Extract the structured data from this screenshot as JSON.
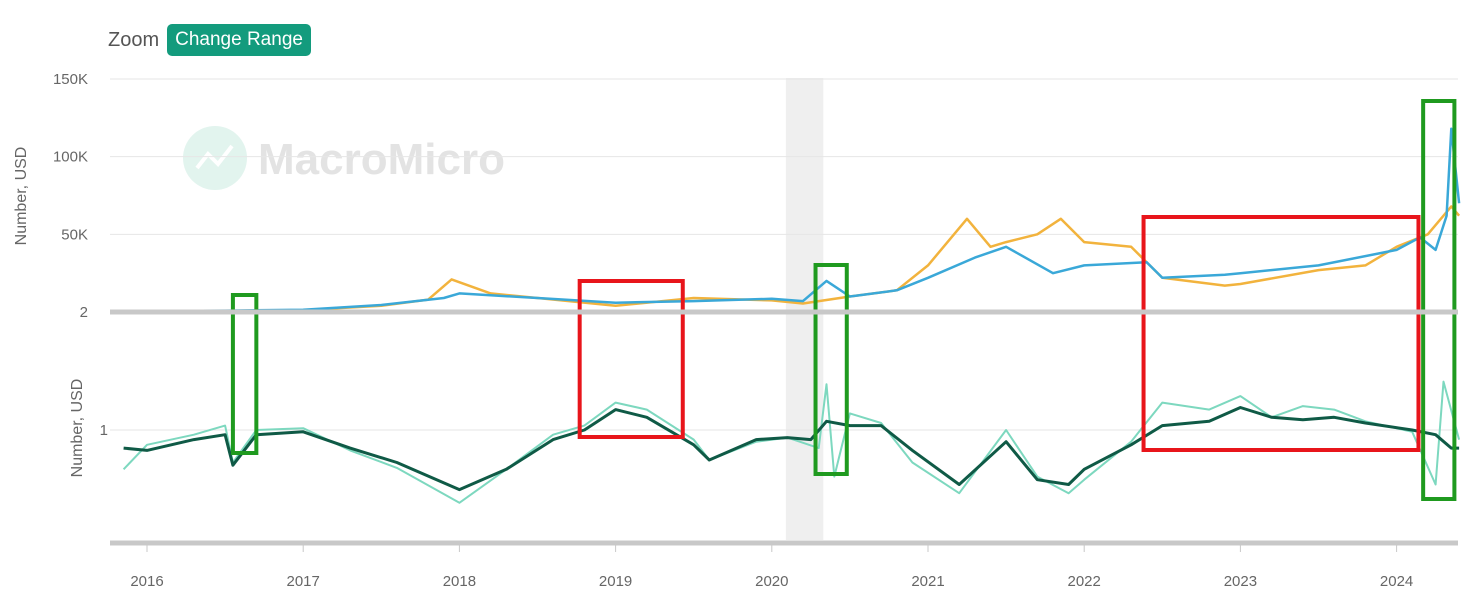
{
  "toolbar": {
    "zoom_label": "Zoom",
    "range_button": "Change Range"
  },
  "watermark": "MacroMicro",
  "colors": {
    "upper_blue": "#3aa8d8",
    "upper_orange": "#f2b33d",
    "lower_light": "#7dd8bf",
    "lower_dark": "#0f5a46",
    "box_red": "#e8151b",
    "box_green": "#1f9a1f",
    "shade": "#efefef"
  },
  "chart_data": [
    {
      "type": "line",
      "panel": "upper",
      "ylabel": "Number, USD",
      "y_ticks": [
        "150K",
        "100K",
        "50K",
        "2"
      ],
      "ylim": [
        0,
        150000
      ],
      "series": [
        {
          "color": "blue",
          "x": [
            2015.9,
            2016.5,
            2017.0,
            2017.5,
            2017.9,
            2018.0,
            2018.5,
            2019.0,
            2019.5,
            2020.0,
            2020.2,
            2020.35,
            2020.5,
            2020.8,
            2021.0,
            2021.3,
            2021.5,
            2021.8,
            2022.0,
            2022.4,
            2022.5,
            2022.9,
            2023.0,
            2023.5,
            2023.9,
            2024.0,
            2024.15,
            2024.25,
            2024.32,
            2024.35,
            2024.4
          ],
          "y": [
            600,
            900,
            1500,
            4500,
            9000,
            12000,
            9000,
            6000,
            7000,
            8500,
            7000,
            20000,
            10000,
            14000,
            22000,
            35000,
            42000,
            25000,
            30000,
            32000,
            22000,
            24000,
            25000,
            30000,
            38000,
            40000,
            48000,
            40000,
            62000,
            118000,
            70000
          ]
        },
        {
          "color": "orange",
          "x": [
            2015.9,
            2016.5,
            2017.0,
            2017.5,
            2017.8,
            2017.95,
            2018.2,
            2018.5,
            2019.0,
            2019.5,
            2020.0,
            2020.2,
            2020.5,
            2020.8,
            2021.0,
            2021.25,
            2021.4,
            2021.5,
            2021.7,
            2021.85,
            2022.0,
            2022.3,
            2022.5,
            2022.9,
            2023.0,
            2023.5,
            2023.8,
            2024.0,
            2024.2,
            2024.35,
            2024.4
          ],
          "y": [
            500,
            700,
            1200,
            4000,
            8000,
            21000,
            12000,
            9000,
            4000,
            9000,
            7500,
            5500,
            10000,
            14000,
            30000,
            60000,
            42000,
            45000,
            50000,
            60000,
            45000,
            42000,
            22000,
            17000,
            18000,
            27000,
            30000,
            42000,
            50000,
            68000,
            62000
          ]
        }
      ]
    },
    {
      "type": "line",
      "panel": "lower",
      "ylabel": "Number, USD",
      "y_ticks": [
        "1"
      ],
      "series": [
        {
          "color": "light",
          "x": [
            2015.85,
            2016.0,
            2016.3,
            2016.5,
            2016.55,
            2016.7,
            2017.0,
            2017.3,
            2017.6,
            2018.0,
            2018.3,
            2018.6,
            2018.8,
            2019.0,
            2019.2,
            2019.5,
            2019.6,
            2019.9,
            2020.1,
            2020.3,
            2020.35,
            2020.4,
            2020.5,
            2020.7,
            2020.9,
            2021.2,
            2021.5,
            2021.7,
            2021.9,
            2022.0,
            2022.3,
            2022.5,
            2022.8,
            2023.0,
            2023.2,
            2023.4,
            2023.6,
            2023.8,
            2024.1,
            2024.25,
            2024.3,
            2024.4
          ],
          "y": [
            0.65,
            0.85,
            0.95,
            1.05,
            0.7,
            1.0,
            1.02,
            0.8,
            0.66,
            0.45,
            0.65,
            0.95,
            1.05,
            1.35,
            1.25,
            0.9,
            0.72,
            0.88,
            0.92,
            0.82,
            1.65,
            0.6,
            1.2,
            1.08,
            0.7,
            0.5,
            1.0,
            0.6,
            0.5,
            0.58,
            0.88,
            1.35,
            1.25,
            1.45,
            1.15,
            1.3,
            1.25,
            1.1,
            0.98,
            0.55,
            1.7,
            0.9
          ]
        },
        {
          "color": "dark",
          "x": [
            2015.85,
            2016.0,
            2016.3,
            2016.5,
            2016.55,
            2016.7,
            2017.0,
            2017.3,
            2017.6,
            2018.0,
            2018.3,
            2018.6,
            2018.8,
            2019.0,
            2019.2,
            2019.5,
            2019.6,
            2019.9,
            2020.1,
            2020.25,
            2020.35,
            2020.5,
            2020.7,
            2020.9,
            2021.2,
            2021.5,
            2021.7,
            2021.9,
            2022.0,
            2022.3,
            2022.5,
            2022.8,
            2023.0,
            2023.2,
            2023.4,
            2023.6,
            2023.8,
            2024.1,
            2024.25,
            2024.35,
            2024.4
          ],
          "y": [
            0.82,
            0.8,
            0.9,
            0.95,
            0.68,
            0.95,
            0.98,
            0.82,
            0.7,
            0.52,
            0.65,
            0.9,
            1.0,
            1.25,
            1.15,
            0.85,
            0.72,
            0.9,
            0.92,
            0.9,
            1.1,
            1.05,
            1.05,
            0.8,
            0.55,
            0.88,
            0.58,
            0.55,
            0.65,
            0.85,
            1.05,
            1.1,
            1.28,
            1.15,
            1.12,
            1.15,
            1.08,
            1.0,
            0.95,
            0.82,
            0.82
          ]
        }
      ]
    }
  ],
  "x_ticks": [
    "2016",
    "2017",
    "2018",
    "2019",
    "2020",
    "2021",
    "2022",
    "2023",
    "2024"
  ],
  "shaded_band": {
    "from": 2020.09,
    "to": 2020.33
  },
  "annotation_boxes": [
    {
      "color": "green",
      "x0": 2016.55,
      "x1": 2016.7,
      "panel": "lower",
      "y0": 0.95,
      "y1": 0.78
    },
    {
      "color": "red",
      "x0": 2018.77,
      "x1": 2019.43,
      "panel": "lower",
      "y0": 1.27,
      "y1": 0.93
    },
    {
      "color": "green",
      "x0": 2020.28,
      "x1": 2020.48,
      "panel": "lower",
      "y0": 1.36,
      "y1": 0.7
    },
    {
      "color": "red",
      "x0": 2022.38,
      "x1": 2024.14,
      "panel": "lower",
      "y0": 1.5,
      "y1": 0.9
    },
    {
      "color": "green",
      "x0": 2024.17,
      "x1": 2024.37,
      "panel": "lower",
      "y0": 1.55,
      "y1": 0.6
    }
  ]
}
